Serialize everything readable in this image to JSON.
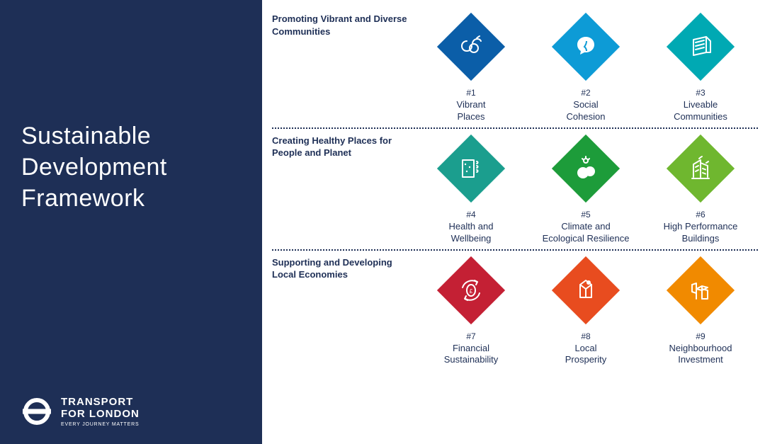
{
  "sidebar": {
    "title": "Sustainable Development Framework",
    "logo_line1": "TRANSPORT",
    "logo_line2": "FOR LONDON",
    "logo_tagline": "EVERY JOURNEY MATTERS",
    "bg_color": "#1e2f56",
    "text_color": "#ffffff"
  },
  "sections": [
    {
      "heading": "Promoting Vibrant and Diverse Communities",
      "tiles": [
        {
          "num": "#1",
          "label": "Vibrant\nPlaces",
          "color": "#0b5ea8",
          "icon": "vibrant"
        },
        {
          "num": "#2",
          "label": "Social\nCohesion",
          "color": "#0d9bd6",
          "icon": "cohesion"
        },
        {
          "num": "#3",
          "label": "Liveable\nCommunities",
          "color": "#00a9b3",
          "icon": "liveable"
        }
      ]
    },
    {
      "heading": "Creating Healthy Places for People and Planet",
      "tiles": [
        {
          "num": "#4",
          "label": "Health and\nWellbeing",
          "color": "#1b9e8e",
          "icon": "health"
        },
        {
          "num": "#5",
          "label": "Climate and\nEcological Resilience",
          "color": "#1d9c3a",
          "icon": "climate"
        },
        {
          "num": "#6",
          "label": "High Performance\nBuildings",
          "color": "#6fb72f",
          "icon": "building"
        }
      ]
    },
    {
      "heading": "Supporting and Developing Local Economies",
      "tiles": [
        {
          "num": "#7",
          "label": "Financial\nSustainability",
          "color": "#c42034",
          "icon": "financial"
        },
        {
          "num": "#8",
          "label": "Local\nProsperity",
          "color": "#e84c1f",
          "icon": "prosperity"
        },
        {
          "num": "#9",
          "label": "Neighbourhood\nInvestment",
          "color": "#f18a00",
          "icon": "investment"
        }
      ]
    }
  ],
  "style": {
    "heading_color": "#1e2f56",
    "caption_color": "#1e2f56",
    "divider_color": "#1e2f56",
    "diamond_size": 68,
    "icon_stroke": "#ffffff"
  }
}
